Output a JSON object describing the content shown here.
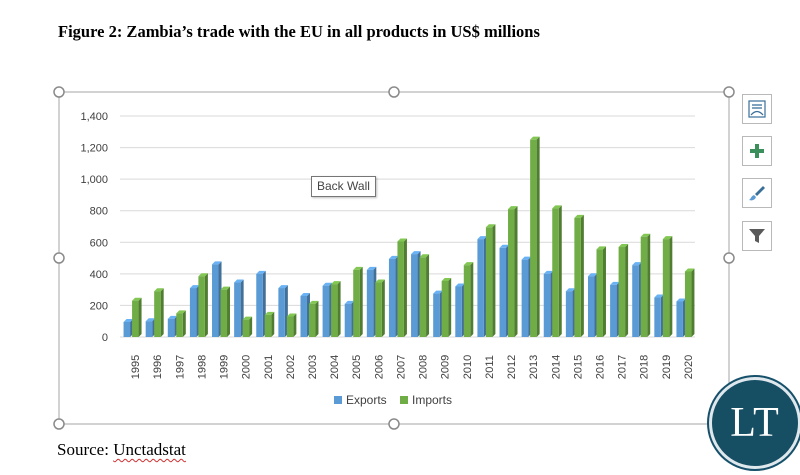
{
  "figure_title": "Figure 2: Zambia’s trade with the EU in all products in US$ millions",
  "source": {
    "prefix": "Source: ",
    "name": "Unctadstat"
  },
  "tooltip": "Back Wall",
  "logo_text": "LT",
  "tool_icons": [
    "chart-layout-icon",
    "plus-icon",
    "brush-icon",
    "filter-icon"
  ],
  "colors": {
    "exports": "#5b9bd5",
    "imports": "#70ad47",
    "grid": "#d9d9d9"
  },
  "chart_data": {
    "type": "bar",
    "title": "",
    "xlabel": "",
    "ylabel": "",
    "ylim": [
      0,
      1400
    ],
    "y_ticks": [
      0,
      200,
      400,
      600,
      800,
      1000,
      1200,
      1400
    ],
    "y_tick_labels": [
      "0",
      "200",
      "400",
      "600",
      "800",
      "1,000",
      "1,200",
      "1,400"
    ],
    "grid": true,
    "legend_position": "bottom",
    "categories": [
      "1995",
      "1996",
      "1997",
      "1998",
      "1999",
      "2000",
      "2001",
      "2002",
      "2003",
      "2004",
      "2005",
      "2006",
      "2007",
      "2008",
      "2009",
      "2010",
      "2011",
      "2012",
      "2013",
      "2014",
      "2015",
      "2016",
      "2017",
      "2018",
      "2019",
      "2020"
    ],
    "series": [
      {
        "name": "Exports",
        "values": [
          95,
          100,
          115,
          310,
          460,
          345,
          400,
          310,
          260,
          325,
          210,
          425,
          495,
          525,
          275,
          320,
          620,
          565,
          490,
          400,
          290,
          385,
          330,
          455,
          250,
          225
        ]
      },
      {
        "name": "Imports",
        "values": [
          230,
          290,
          150,
          385,
          300,
          110,
          140,
          130,
          210,
          335,
          425,
          345,
          605,
          505,
          355,
          455,
          695,
          810,
          1250,
          815,
          755,
          555,
          570,
          635,
          620,
          415
        ]
      }
    ]
  }
}
